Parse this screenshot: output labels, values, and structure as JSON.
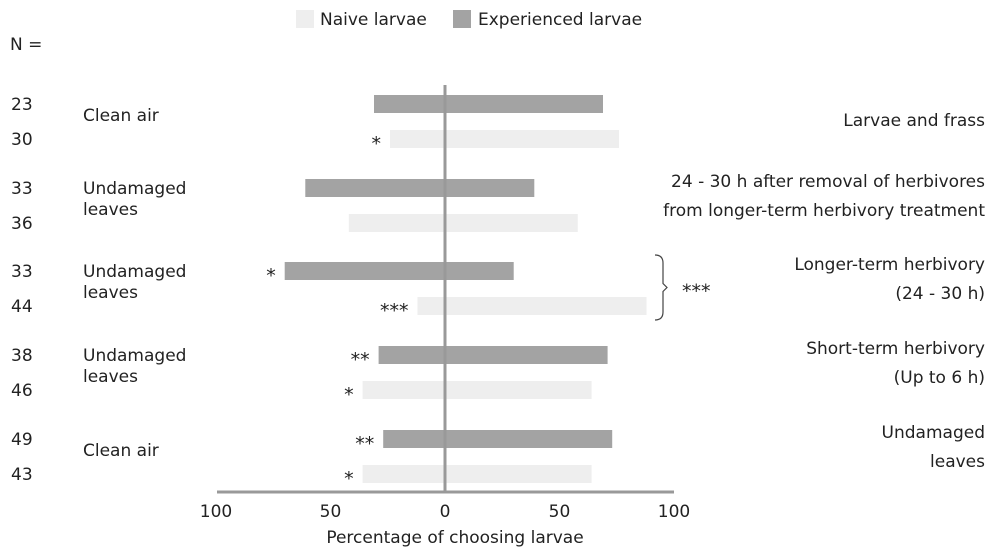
{
  "chart_data": {
    "type": "bar",
    "orientation": "horizontal-diverging",
    "n_header": "N =",
    "xlabel": "Percentage of choosing larvae",
    "xlim": [
      -100,
      100
    ],
    "x_tick_labels": [
      "100",
      "50",
      "0",
      "50",
      "100"
    ],
    "legend": {
      "position": "top-center",
      "entries": [
        {
          "label": "Naive larvae",
          "color": "#eeeeee"
        },
        {
          "label": "Experienced larvae",
          "color": "#a3a3a3"
        }
      ]
    },
    "groups": [
      {
        "left_label": [
          "Clean air"
        ],
        "right_label": [
          "Larvae and frass"
        ],
        "bars": [
          {
            "series": "Experienced larvae",
            "n": "23",
            "left": 31,
            "right": 69,
            "left_sig": "",
            "right_sig": ""
          },
          {
            "series": "Naive larvae",
            "n": "30",
            "left": 24,
            "right": 76,
            "left_sig": "*",
            "right_sig": ""
          }
        ]
      },
      {
        "left_label": [
          "Undamaged",
          "leaves"
        ],
        "right_label": [
          "24 - 30 h after removal of herbivores",
          "from longer-term herbivory treatment"
        ],
        "bars": [
          {
            "series": "Experienced larvae",
            "n": "33",
            "left": 61,
            "right": 39,
            "left_sig": "",
            "right_sig": ""
          },
          {
            "series": "Naive larvae",
            "n": "36",
            "left": 42,
            "right": 58,
            "left_sig": "",
            "right_sig": ""
          }
        ]
      },
      {
        "left_label": [
          "Undamaged",
          "leaves"
        ],
        "right_label": [
          "Longer-term herbivory",
          "(24 - 30 h)"
        ],
        "bracket_sig": "***",
        "bars": [
          {
            "series": "Experienced larvae",
            "n": "33",
            "left": 70,
            "right": 30,
            "left_sig": "*",
            "right_sig": ""
          },
          {
            "series": "Naive larvae",
            "n": "44",
            "left": 12,
            "right": 88,
            "left_sig": "***",
            "right_sig": ""
          }
        ]
      },
      {
        "left_label": [
          "Undamaged",
          "leaves"
        ],
        "right_label": [
          "Short-term herbivory",
          "(Up to 6 h)"
        ],
        "bars": [
          {
            "series": "Experienced larvae",
            "n": "38",
            "left": 29,
            "right": 71,
            "left_sig": "**",
            "right_sig": ""
          },
          {
            "series": "Naive larvae",
            "n": "46",
            "left": 36,
            "right": 64,
            "left_sig": "*",
            "right_sig": ""
          }
        ]
      },
      {
        "left_label": [
          "Clean air"
        ],
        "right_label": [
          "Undamaged",
          "leaves"
        ],
        "bars": [
          {
            "series": "Experienced larvae",
            "n": "49",
            "left": 27,
            "right": 73,
            "left_sig": "**",
            "right_sig": ""
          },
          {
            "series": "Naive larvae",
            "n": "43",
            "left": 36,
            "right": 64,
            "left_sig": "*",
            "right_sig": ""
          }
        ]
      }
    ]
  }
}
